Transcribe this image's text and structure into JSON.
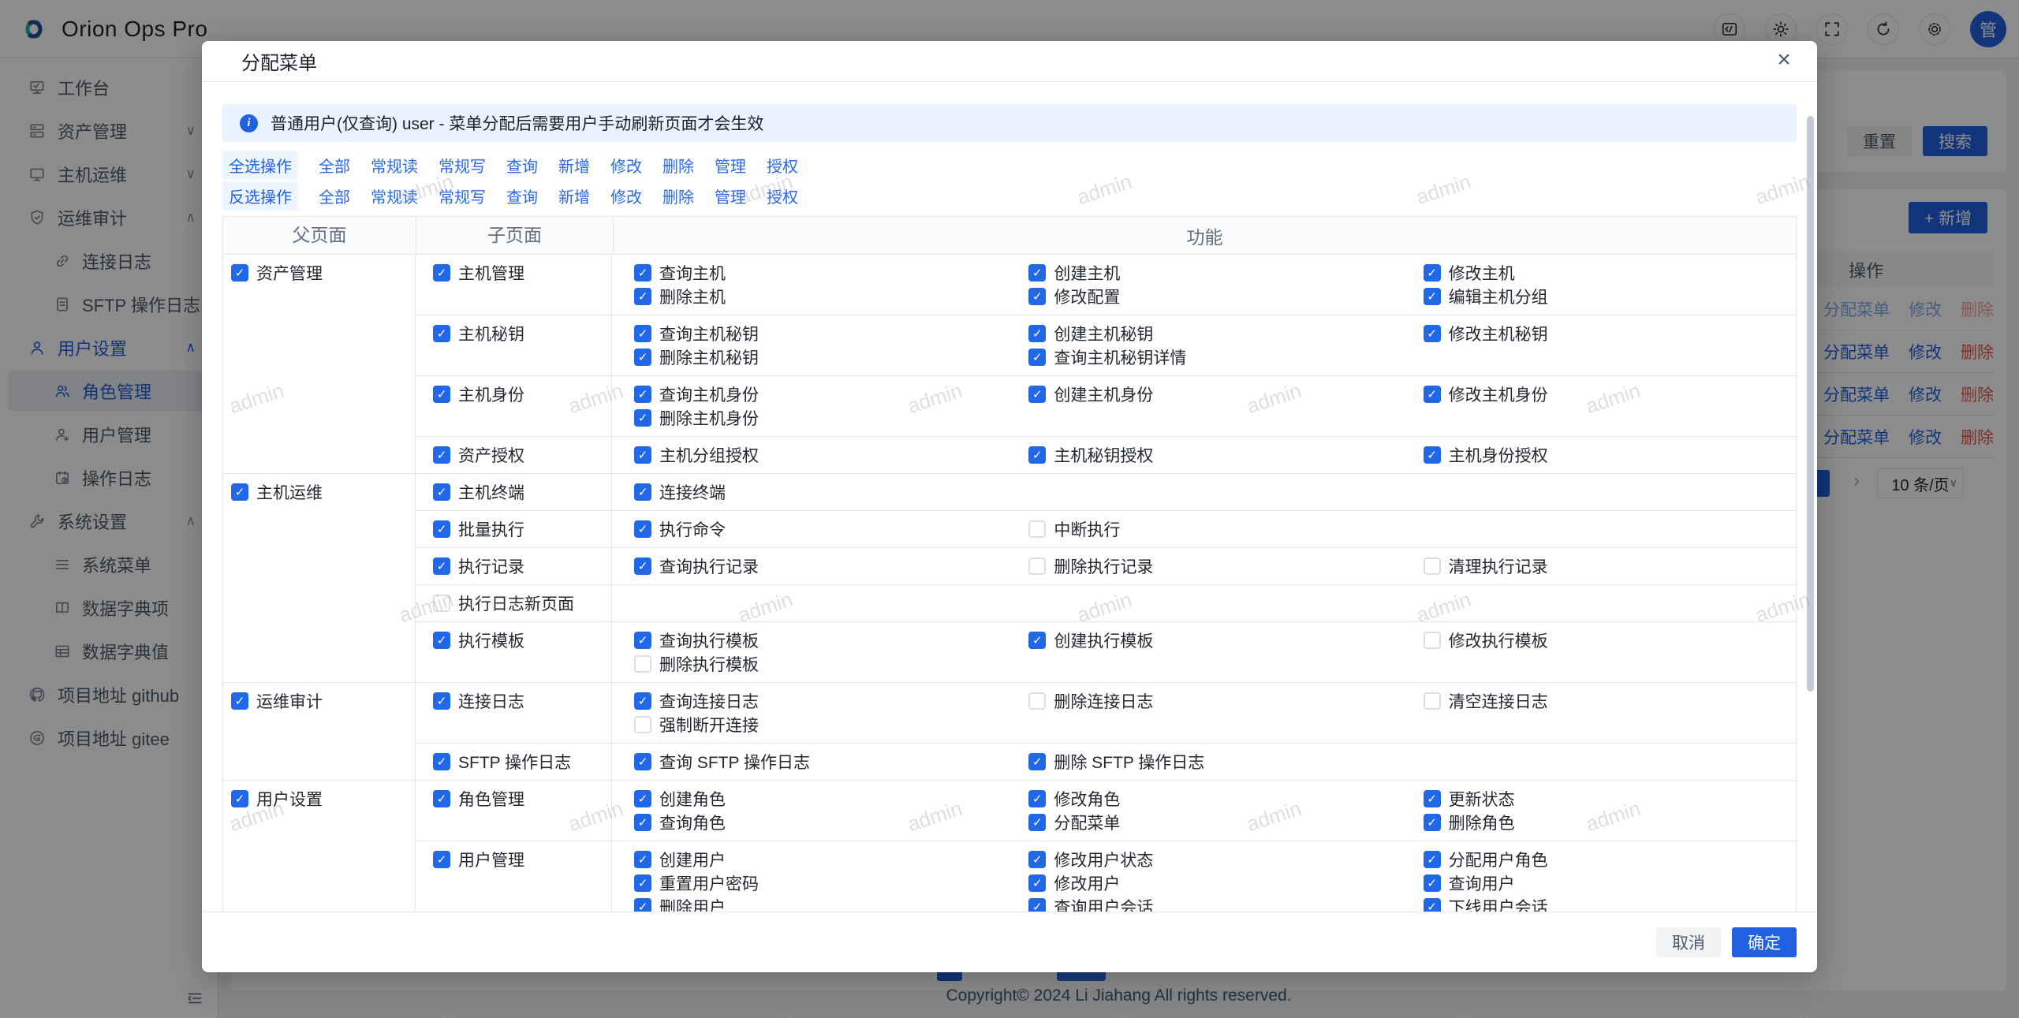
{
  "brand": {
    "title": "Orion Ops Pro"
  },
  "topbar": {
    "icons": [
      {
        "name": "code-icon"
      },
      {
        "name": "theme-icon"
      },
      {
        "name": "fullscreen-icon"
      },
      {
        "name": "refresh-icon"
      },
      {
        "name": "settings-icon"
      }
    ],
    "avatar_text": "管"
  },
  "sidebar": {
    "items": [
      {
        "label": "工作台",
        "icon": "workbench-icon",
        "level": 1,
        "chevron": null,
        "state": "normal"
      },
      {
        "label": "资产管理",
        "icon": "assets-icon",
        "level": 1,
        "chevron": "down",
        "state": "normal"
      },
      {
        "label": "主机运维",
        "icon": "host-ops-icon",
        "level": 1,
        "chevron": "down",
        "state": "normal"
      },
      {
        "label": "运维审计",
        "icon": "audit-icon",
        "level": 1,
        "chevron": "up",
        "state": "normal"
      },
      {
        "label": "连接日志",
        "icon": "link-icon",
        "level": 2,
        "chevron": null,
        "state": "normal"
      },
      {
        "label": "SFTP 操作日志",
        "icon": "file-icon",
        "level": 2,
        "chevron": null,
        "state": "normal"
      },
      {
        "label": "用户设置",
        "icon": "user-icon",
        "level": 1,
        "chevron": "up",
        "state": "parent-active"
      },
      {
        "label": "角色管理",
        "icon": "roles-icon",
        "level": 2,
        "chevron": null,
        "state": "active"
      },
      {
        "label": "用户管理",
        "icon": "user-add-icon",
        "level": 2,
        "chevron": null,
        "state": "normal"
      },
      {
        "label": "操作日志",
        "icon": "oplog-icon",
        "level": 2,
        "chevron": null,
        "state": "normal"
      },
      {
        "label": "系统设置",
        "icon": "wrench-icon",
        "level": 1,
        "chevron": "up",
        "state": "normal"
      },
      {
        "label": "系统菜单",
        "icon": "menu-icon",
        "level": 2,
        "chevron": null,
        "state": "normal"
      },
      {
        "label": "数据字典项",
        "icon": "dict-item-icon",
        "level": 2,
        "chevron": null,
        "state": "normal"
      },
      {
        "label": "数据字典值",
        "icon": "dict-value-icon",
        "level": 2,
        "chevron": null,
        "state": "normal"
      },
      {
        "label": "项目地址 github",
        "icon": "github-icon",
        "level": 1,
        "chevron": null,
        "state": "normal"
      },
      {
        "label": "项目地址 gitee",
        "icon": "gitee-icon",
        "level": 1,
        "chevron": null,
        "state": "normal"
      }
    ]
  },
  "background": {
    "reset_label": "重置",
    "search_label": "搜索",
    "add_label": "+ 新增",
    "ops_header": "操作",
    "row_actions": [
      "分配菜单",
      "修改",
      "删除"
    ],
    "row_count": 4,
    "pager_next": "›",
    "page_size": "10 条/页",
    "size_chevron": "∨",
    "copyright": "Copyright© 2024 Li Jiahang All rights reserved."
  },
  "modal": {
    "title": "分配菜单",
    "close": "×",
    "alert": "普通用户(仅查询) user - 菜单分配后需要用户手动刷新页面才会生效",
    "select_ops": {
      "head": "全选操作",
      "items": [
        "全部",
        "常规读",
        "常规写",
        "查询",
        "新增",
        "修改",
        "删除",
        "管理",
        "授权"
      ]
    },
    "invert_ops": {
      "head": "反选操作",
      "items": [
        "全部",
        "常规读",
        "常规写",
        "查询",
        "新增",
        "修改",
        "删除",
        "管理",
        "授权"
      ]
    },
    "table": {
      "headers": [
        "父页面",
        "子页面",
        "功能"
      ],
      "groups": [
        {
          "parent": {
            "label": "资产管理",
            "checked": true
          },
          "rows": [
            {
              "sub": {
                "label": "主机管理",
                "checked": true
              },
              "funcs": [
                [
                  {
                    "label": "查询主机",
                    "checked": true
                  },
                  {
                    "label": "删除主机",
                    "checked": true
                  }
                ],
                [
                  {
                    "label": "创建主机",
                    "checked": true
                  },
                  {
                    "label": "修改配置",
                    "checked": true
                  }
                ],
                [
                  {
                    "label": "修改主机",
                    "checked": true
                  },
                  {
                    "label": "编辑主机分组",
                    "checked": true
                  }
                ]
              ]
            },
            {
              "sub": {
                "label": "主机秘钥",
                "checked": true
              },
              "funcs": [
                [
                  {
                    "label": "查询主机秘钥",
                    "checked": true
                  },
                  {
                    "label": "删除主机秘钥",
                    "checked": true
                  }
                ],
                [
                  {
                    "label": "创建主机秘钥",
                    "checked": true
                  },
                  {
                    "label": "查询主机秘钥详情",
                    "checked": true
                  }
                ],
                [
                  {
                    "label": "修改主机秘钥",
                    "checked": true
                  }
                ]
              ]
            },
            {
              "sub": {
                "label": "主机身份",
                "checked": true
              },
              "funcs": [
                [
                  {
                    "label": "查询主机身份",
                    "checked": true
                  },
                  {
                    "label": "删除主机身份",
                    "checked": true
                  }
                ],
                [
                  {
                    "label": "创建主机身份",
                    "checked": true
                  }
                ],
                [
                  {
                    "label": "修改主机身份",
                    "checked": true
                  }
                ]
              ]
            },
            {
              "sub": {
                "label": "资产授权",
                "checked": true
              },
              "funcs": [
                [
                  {
                    "label": "主机分组授权",
                    "checked": true
                  }
                ],
                [
                  {
                    "label": "主机秘钥授权",
                    "checked": true
                  }
                ],
                [
                  {
                    "label": "主机身份授权",
                    "checked": true
                  }
                ]
              ]
            }
          ]
        },
        {
          "parent": {
            "label": "主机运维",
            "checked": true
          },
          "rows": [
            {
              "sub": {
                "label": "主机终端",
                "checked": true
              },
              "funcs": [
                [
                  {
                    "label": "连接终端",
                    "checked": true
                  }
                ],
                [],
                []
              ]
            },
            {
              "sub": {
                "label": "批量执行",
                "checked": true
              },
              "funcs": [
                [
                  {
                    "label": "执行命令",
                    "checked": true
                  }
                ],
                [
                  {
                    "label": "中断执行",
                    "checked": false
                  }
                ],
                []
              ]
            },
            {
              "sub": {
                "label": "执行记录",
                "checked": true
              },
              "funcs": [
                [
                  {
                    "label": "查询执行记录",
                    "checked": true
                  }
                ],
                [
                  {
                    "label": "删除执行记录",
                    "checked": false
                  }
                ],
                [
                  {
                    "label": "清理执行记录",
                    "checked": false
                  }
                ]
              ]
            },
            {
              "sub": {
                "label": "执行日志新页面",
                "checked": false
              },
              "funcs": [
                [],
                [],
                []
              ]
            },
            {
              "sub": {
                "label": "执行模板",
                "checked": true
              },
              "funcs": [
                [
                  {
                    "label": "查询执行模板",
                    "checked": true
                  },
                  {
                    "label": "删除执行模板",
                    "checked": false
                  }
                ],
                [
                  {
                    "label": "创建执行模板",
                    "checked": true
                  }
                ],
                [
                  {
                    "label": "修改执行模板",
                    "checked": false
                  }
                ]
              ]
            }
          ]
        },
        {
          "parent": {
            "label": "运维审计",
            "checked": true
          },
          "rows": [
            {
              "sub": {
                "label": "连接日志",
                "checked": true
              },
              "funcs": [
                [
                  {
                    "label": "查询连接日志",
                    "checked": true
                  },
                  {
                    "label": "强制断开连接",
                    "checked": false
                  }
                ],
                [
                  {
                    "label": "删除连接日志",
                    "checked": false
                  }
                ],
                [
                  {
                    "label": "清空连接日志",
                    "checked": false
                  }
                ]
              ]
            },
            {
              "sub": {
                "label": "SFTP 操作日志",
                "checked": true
              },
              "funcs": [
                [
                  {
                    "label": "查询 SFTP 操作日志",
                    "checked": true
                  }
                ],
                [
                  {
                    "label": "删除 SFTP 操作日志",
                    "checked": true
                  }
                ],
                []
              ]
            }
          ]
        },
        {
          "parent": {
            "label": "用户设置",
            "checked": true
          },
          "rows": [
            {
              "sub": {
                "label": "角色管理",
                "checked": true
              },
              "funcs": [
                [
                  {
                    "label": "创建角色",
                    "checked": true
                  },
                  {
                    "label": "查询角色",
                    "checked": true
                  }
                ],
                [
                  {
                    "label": "修改角色",
                    "checked": true
                  },
                  {
                    "label": "分配菜单",
                    "checked": true
                  }
                ],
                [
                  {
                    "label": "更新状态",
                    "checked": true
                  },
                  {
                    "label": "删除角色",
                    "checked": true
                  }
                ]
              ]
            },
            {
              "sub": {
                "label": "用户管理",
                "checked": true
              },
              "funcs": [
                [
                  {
                    "label": "创建用户",
                    "checked": true
                  },
                  {
                    "label": "重置用户密码",
                    "checked": true
                  },
                  {
                    "label": "删除用户",
                    "checked": true
                  }
                ],
                [
                  {
                    "label": "修改用户状态",
                    "checked": true
                  },
                  {
                    "label": "修改用户",
                    "checked": true
                  },
                  {
                    "label": "查询用户会话",
                    "checked": true
                  }
                ],
                [
                  {
                    "label": "分配用户角色",
                    "checked": true
                  },
                  {
                    "label": "查询用户",
                    "checked": true
                  },
                  {
                    "label": "下线用户会话",
                    "checked": true
                  }
                ]
              ]
            }
          ]
        }
      ]
    },
    "footer": {
      "cancel": "取消",
      "ok": "确定"
    }
  },
  "watermark": {
    "text": "admin"
  },
  "colors": {
    "primary": "#2160e0",
    "checkbox": "#2068e8",
    "danger": "#e8584f",
    "alert_bg": "#e8f3ff"
  }
}
